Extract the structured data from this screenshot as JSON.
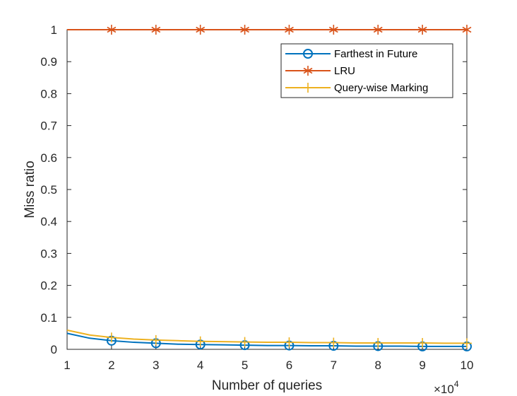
{
  "chart_data": {
    "type": "line",
    "title": "",
    "xlabel": "Number of queries",
    "ylabel": "Miss ratio",
    "x_multiplier": {
      "base": "×10",
      "exponent": "4"
    },
    "xlim": [
      1,
      10
    ],
    "ylim": [
      0,
      1
    ],
    "xticks": [
      1,
      2,
      3,
      4,
      5,
      6,
      7,
      8,
      9,
      10
    ],
    "xtick_labels": [
      "1",
      "2",
      "3",
      "4",
      "5",
      "6",
      "7",
      "8",
      "9",
      "10"
    ],
    "yticks": [
      0,
      0.1,
      0.2,
      0.3,
      0.4,
      0.5,
      0.6,
      0.7,
      0.8,
      0.9,
      1
    ],
    "ytick_labels": [
      "0",
      "0.1",
      "0.2",
      "0.3",
      "0.4",
      "0.5",
      "0.6",
      "0.7",
      "0.8",
      "0.9",
      "1"
    ],
    "grid": false,
    "legend_position": "top-right",
    "series": [
      {
        "name": "Farthest in Future",
        "color": "#0072BD",
        "marker": "circle",
        "x": [
          1,
          1.5,
          2,
          2.5,
          3,
          3.5,
          4,
          4.5,
          5,
          5.5,
          6,
          6.5,
          7,
          7.5,
          8,
          8.5,
          9,
          9.5,
          10
        ],
        "values": [
          0.05,
          0.035,
          0.027,
          0.022,
          0.019,
          0.016,
          0.015,
          0.014,
          0.013,
          0.012,
          0.012,
          0.011,
          0.011,
          0.01,
          0.01,
          0.01,
          0.009,
          0.009,
          0.009
        ],
        "marker_x": [
          2,
          3,
          4,
          5,
          6,
          7,
          8,
          9,
          10
        ]
      },
      {
        "name": "LRU",
        "color": "#D95319",
        "marker": "asterisk",
        "x": [
          1,
          2,
          3,
          4,
          5,
          6,
          7,
          8,
          9,
          10
        ],
        "values": [
          1,
          1,
          1,
          1,
          1,
          1,
          1,
          1,
          1,
          1
        ],
        "marker_x": [
          2,
          3,
          4,
          5,
          6,
          7,
          8,
          9,
          10
        ]
      },
      {
        "name": "Query-wise Marking",
        "color": "#EDB120",
        "marker": "plus",
        "x": [
          1,
          1.5,
          2,
          2.5,
          3,
          3.5,
          4,
          4.5,
          5,
          5.5,
          6,
          6.5,
          7,
          7.5,
          8,
          8.5,
          9,
          9.5,
          10
        ],
        "values": [
          0.06,
          0.045,
          0.037,
          0.032,
          0.029,
          0.027,
          0.025,
          0.024,
          0.023,
          0.022,
          0.022,
          0.021,
          0.021,
          0.02,
          0.02,
          0.02,
          0.02,
          0.019,
          0.019
        ],
        "marker_x": [
          2,
          3,
          4,
          5,
          6,
          7,
          8,
          9,
          10
        ]
      }
    ]
  }
}
